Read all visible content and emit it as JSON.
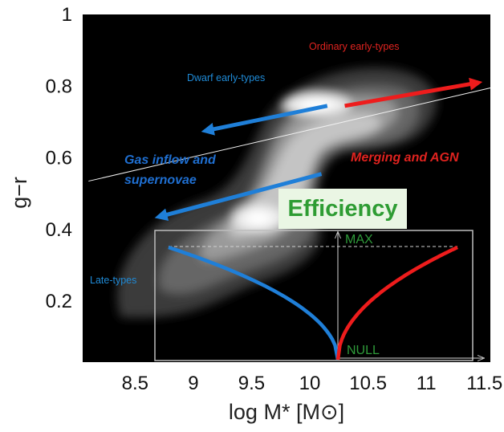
{
  "chart_data": {
    "type": "scatter",
    "xlabel": "log M* [M⊙]",
    "ylabel": "g−r",
    "xlim": [
      8.05,
      11.55
    ],
    "ylim": [
      0.03,
      1.0
    ],
    "xticks": [
      8.5,
      9,
      9.5,
      10,
      10.5,
      11,
      11.5
    ],
    "xtick_labels": [
      "8.5",
      "9",
      "9.5",
      "10",
      "10.5",
      "11",
      "11.5"
    ],
    "yticks": [
      0.2,
      0.4,
      0.6,
      0.8,
      1.0
    ],
    "ytick_labels": [
      "0.2",
      "0.4",
      "0.6",
      "0.8",
      "1"
    ],
    "density_peaks": [
      {
        "x": 10.2,
        "y": 0.75,
        "note": "red sequence peak"
      },
      {
        "x": 9.65,
        "y": 0.46,
        "note": "blue cloud peak"
      }
    ],
    "dividing_line": {
      "x": [
        8.1,
        11.55
      ],
      "y": [
        0.535,
        0.795
      ]
    },
    "arrows": [
      {
        "color": "#1f7fd8",
        "from": [
          10.15,
          0.745
        ],
        "to": [
          9.1,
          0.675
        ]
      },
      {
        "color": "#1f7fd8",
        "from": [
          10.1,
          0.555
        ],
        "to": [
          8.7,
          0.435
        ]
      },
      {
        "color": "#ee1c1c",
        "from": [
          10.3,
          0.745
        ],
        "to": [
          11.45,
          0.81
        ]
      }
    ],
    "annotations": {
      "ordinary": "Ordinary early-types",
      "dwarf": "Dwarf early-types",
      "gas1": "Gas inflow and",
      "gas2": "supernovae",
      "merging": "Merging and AGN",
      "late": "Late-types"
    },
    "inset": {
      "title": "Efficiency",
      "max_label": "MAX",
      "null_label": "NULL",
      "blue_curve": "sqrt decline from MAX at left to NULL at centre",
      "red_curve": "sqrt rise from NULL at centre to MAX at right"
    }
  }
}
